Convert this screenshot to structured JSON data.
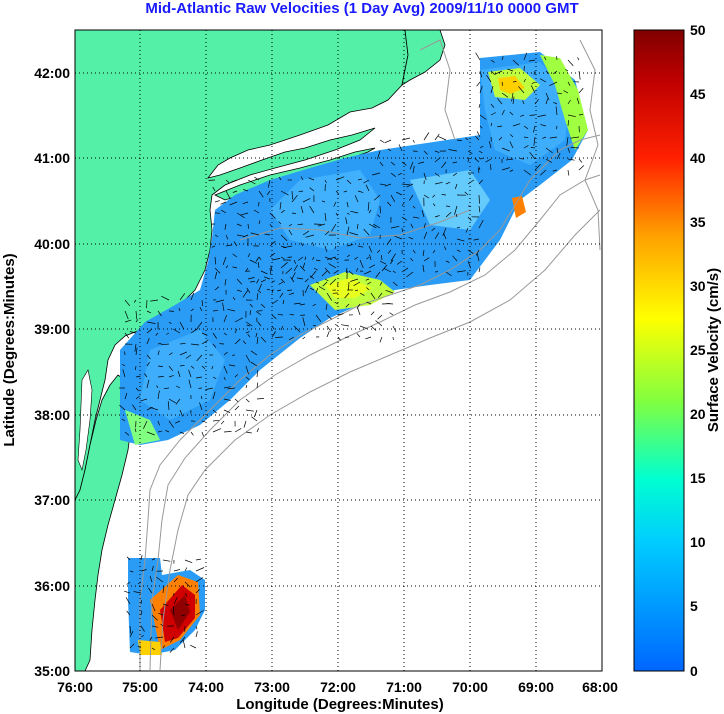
{
  "title": "Mid-Atlantic Raw Velocities (1 Day Avg) 2009/11/10 0000 GMT",
  "xlabel": "Longitude (Degrees:Minutes)",
  "ylabel": "Latitude (Degrees:Minutes)",
  "x_ticks": [
    "76:00",
    "75:00",
    "74:00",
    "73:00",
    "72:00",
    "71:00",
    "70:00",
    "69:00",
    "68:00"
  ],
  "y_ticks": [
    "42:00",
    "41:00",
    "40:00",
    "39:00",
    "38:00",
    "37:00",
    "36:00",
    "35:00"
  ],
  "colorbar": {
    "label": "Surface Velocity (cm/s)",
    "ticks": [
      "50",
      "45",
      "40",
      "35",
      "30",
      "25",
      "20",
      "15",
      "10",
      "5",
      "0"
    ],
    "range": [
      0,
      50
    ]
  },
  "extent": {
    "lon": [
      -76,
      -68
    ],
    "lat": [
      35,
      42.5
    ]
  },
  "colors": {
    "land": "#55f0a8",
    "ocean": "#ffffff",
    "coast": "#000000",
    "bathymetry": "#999999",
    "title": "#1a1aff"
  }
}
